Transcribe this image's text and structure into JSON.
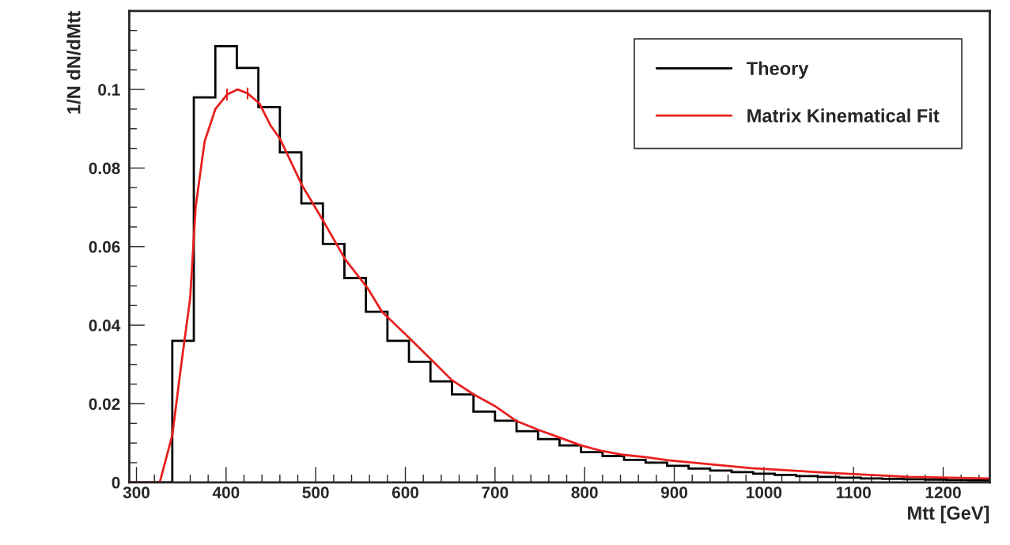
{
  "chart_data": {
    "type": "histogram",
    "xlabel": "Mtt [GeV]",
    "ylabel": "1/N dN/dMtt",
    "xlim": [
      292,
      1252
    ],
    "ylim": [
      0,
      0.12
    ],
    "xticks": [
      300,
      400,
      500,
      600,
      700,
      800,
      900,
      1000,
      1100,
      1200
    ],
    "yticks": [
      {
        "value": 0,
        "label": "0"
      },
      0.02,
      0.04,
      0.06,
      0.08,
      0.1
    ],
    "grid": false,
    "legend": "top right",
    "series": [
      {
        "name": "Theory",
        "color": "#000000",
        "bins": [
          292,
          316,
          340,
          364,
          388,
          412,
          436,
          460,
          484,
          508,
          532,
          556,
          580,
          604,
          628,
          652,
          676,
          700,
          724,
          748,
          772,
          796,
          820,
          844,
          868,
          892,
          916,
          940,
          964,
          988,
          1012,
          1036,
          1060,
          1084,
          1108,
          1132,
          1156,
          1180,
          1204,
          1228,
          1252
        ],
        "values": [
          0,
          0,
          0.036,
          0.098,
          0.111,
          0.1055,
          0.0955,
          0.084,
          0.071,
          0.0607,
          0.052,
          0.0434,
          0.036,
          0.0307,
          0.0257,
          0.0224,
          0.018,
          0.0157,
          0.013,
          0.011,
          0.0094,
          0.0077,
          0.0067,
          0.0057,
          0.005,
          0.0042,
          0.0035,
          0.003,
          0.0026,
          0.0022,
          0.0019,
          0.0016,
          0.0014,
          0.0012,
          0.001,
          0.0009,
          0.0008,
          0.0007,
          0.0006,
          0.0005
        ]
      },
      {
        "type": "line",
        "name": "Matrix Kinematical Fit",
        "color": "#e8201e",
        "x": [
          292,
          326,
          340,
          350,
          360,
          366,
          376,
          388,
          401,
          413,
          424,
          437,
          450,
          460,
          485,
          508,
          533,
          558,
          574,
          605,
          628,
          652,
          676,
          700,
          724,
          748,
          772,
          796,
          819,
          843,
          868,
          893,
          986,
          1074,
          1162,
          1251
        ],
        "values": [
          0,
          0,
          0.012,
          0.03,
          0.047,
          0.07,
          0.0867,
          0.095,
          0.0987,
          0.1,
          0.099,
          0.0965,
          0.0907,
          0.0875,
          0.0755,
          0.0667,
          0.0567,
          0.0494,
          0.0434,
          0.0366,
          0.0314,
          0.026,
          0.0224,
          0.0194,
          0.0156,
          0.0134,
          0.0114,
          0.0094,
          0.008,
          0.007,
          0.0064,
          0.0056,
          0.0036,
          0.0024,
          0.0014,
          0.001
        ],
        "errors": [
          null,
          null,
          null,
          null,
          null,
          null,
          null,
          null,
          0.0015,
          null,
          0.0015,
          null,
          null,
          null,
          null,
          null,
          null,
          null,
          null,
          null,
          null,
          null,
          null,
          null,
          null,
          null,
          null,
          null,
          null,
          null,
          null,
          null,
          null,
          null,
          null,
          null
        ]
      }
    ]
  }
}
